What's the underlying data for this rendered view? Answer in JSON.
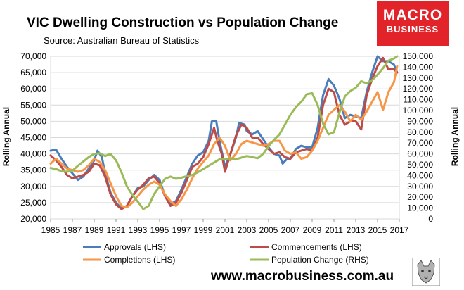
{
  "header": {
    "title": "VIC Dwelling Construction vs Population Change",
    "source": "Source: Australian Bureau of Statistics"
  },
  "brand": {
    "line1": "MACRO",
    "line2": "BUSINESS",
    "color": "#e2232a"
  },
  "footer": {
    "website": "www.macrobusiness.com.au"
  },
  "chart_data": {
    "type": "line",
    "title": "VIC Dwelling Construction vs Population Change",
    "ylabel": "Rolling Annual",
    "y2label": "Rolling Annual",
    "xlim": [
      1985,
      2017
    ],
    "ylim": [
      20000,
      70000
    ],
    "y2lim": [
      0,
      150000
    ],
    "x_ticks": [
      "1985",
      "1987",
      "1989",
      "1991",
      "1993",
      "1995",
      "1997",
      "1999",
      "2001",
      "2003",
      "2005",
      "2007",
      "2009",
      "2011",
      "2013",
      "2015",
      "2017"
    ],
    "y_ticks": [
      "70,000",
      "65,000",
      "60,000",
      "55,000",
      "50,000",
      "45,000",
      "40,000",
      "35,000",
      "30,000",
      "25,000",
      "20,000"
    ],
    "y2_ticks": [
      "150,000",
      "140,000",
      "130,000",
      "120,000",
      "110,000",
      "100,000",
      "90,000",
      "80,000",
      "70,000",
      "60,000",
      "50,000",
      "40,000",
      "30,000",
      "20,000",
      "10,000",
      "0"
    ],
    "legend": [
      "Approvals (LHS)",
      "Commencements (LHS)",
      "Completions (LHS)",
      "Population Change (RHS)"
    ],
    "series": [
      {
        "name": "Approvals (LHS)",
        "axis": "left",
        "color": "#4a7ebb",
        "points": [
          [
            1985,
            41000
          ],
          [
            1985.5,
            41300
          ],
          [
            1986,
            38500
          ],
          [
            1986.5,
            36000
          ],
          [
            1987,
            34000
          ],
          [
            1987.5,
            32000
          ],
          [
            1988,
            33000
          ],
          [
            1988.5,
            35500
          ],
          [
            1989,
            38000
          ],
          [
            1989.3,
            41000
          ],
          [
            1989.7,
            39000
          ],
          [
            1990,
            34000
          ],
          [
            1990.5,
            28000
          ],
          [
            1991,
            25000
          ],
          [
            1991.5,
            23200
          ],
          [
            1992,
            24000
          ],
          [
            1992.5,
            27000
          ],
          [
            1993,
            29500
          ],
          [
            1993.5,
            30000
          ],
          [
            1994,
            32000
          ],
          [
            1994.5,
            33500
          ],
          [
            1995,
            32000
          ],
          [
            1995.5,
            27000
          ],
          [
            1996,
            24500
          ],
          [
            1996.5,
            25500
          ],
          [
            1997,
            29000
          ],
          [
            1997.5,
            33000
          ],
          [
            1998,
            37000
          ],
          [
            1998.5,
            39500
          ],
          [
            1999,
            40500
          ],
          [
            1999.5,
            44000
          ],
          [
            1999.8,
            50000
          ],
          [
            2000.2,
            50000
          ],
          [
            2000.5,
            44000
          ],
          [
            2001,
            36000
          ],
          [
            2001.5,
            40000
          ],
          [
            2002,
            45000
          ],
          [
            2002.3,
            49500
          ],
          [
            2002.8,
            49000
          ],
          [
            2003,
            47000
          ],
          [
            2003.5,
            46000
          ],
          [
            2004,
            47000
          ],
          [
            2004.5,
            44500
          ],
          [
            2005,
            42000
          ],
          [
            2005.5,
            40000
          ],
          [
            2006,
            39500
          ],
          [
            2006.3,
            37000
          ],
          [
            2006.7,
            38500
          ],
          [
            2007,
            38500
          ],
          [
            2007.5,
            41500
          ],
          [
            2008,
            42500
          ],
          [
            2008.5,
            42000
          ],
          [
            2009,
            42000
          ],
          [
            2009.5,
            48000
          ],
          [
            2010,
            58000
          ],
          [
            2010.5,
            63000
          ],
          [
            2011,
            61000
          ],
          [
            2011.5,
            57000
          ],
          [
            2012,
            51000
          ],
          [
            2012.5,
            52000
          ],
          [
            2013,
            51500
          ],
          [
            2013.5,
            51000
          ],
          [
            2014,
            59000
          ],
          [
            2014.5,
            65000
          ],
          [
            2015,
            70000
          ],
          [
            2015.5,
            68500
          ],
          [
            2016,
            68500
          ],
          [
            2016.5,
            67500
          ],
          [
            2016.8,
            65000
          ]
        ]
      },
      {
        "name": "Commencements (LHS)",
        "axis": "left",
        "color": "#be4b48",
        "points": [
          [
            1985,
            39500
          ],
          [
            1985.5,
            38000
          ],
          [
            1986,
            36000
          ],
          [
            1986.5,
            33500
          ],
          [
            1987,
            32500
          ],
          [
            1987.5,
            33000
          ],
          [
            1988,
            33500
          ],
          [
            1988.5,
            34500
          ],
          [
            1989,
            37000
          ],
          [
            1989.5,
            36500
          ],
          [
            1990,
            33000
          ],
          [
            1990.5,
            27500
          ],
          [
            1991,
            24500
          ],
          [
            1991.5,
            23000
          ],
          [
            1992,
            24000
          ],
          [
            1992.5,
            27000
          ],
          [
            1993,
            29000
          ],
          [
            1993.5,
            30500
          ],
          [
            1994,
            32500
          ],
          [
            1994.5,
            33000
          ],
          [
            1995,
            31000
          ],
          [
            1995.5,
            27000
          ],
          [
            1996,
            24000
          ],
          [
            1996.5,
            25000
          ],
          [
            1997,
            28000
          ],
          [
            1997.5,
            32000
          ],
          [
            1998,
            36000
          ],
          [
            1998.5,
            37000
          ],
          [
            1999,
            39000
          ],
          [
            1999.5,
            43000
          ],
          [
            2000,
            48000
          ],
          [
            2000.3,
            44000
          ],
          [
            2000.7,
            40000
          ],
          [
            2001,
            34500
          ],
          [
            2001.5,
            40000
          ],
          [
            2002,
            45500
          ],
          [
            2002.5,
            49000
          ],
          [
            2003,
            48000
          ],
          [
            2003.5,
            45000
          ],
          [
            2004,
            45000
          ],
          [
            2004.5,
            43000
          ],
          [
            2005,
            41500
          ],
          [
            2005.5,
            40000
          ],
          [
            2006,
            40500
          ],
          [
            2006.5,
            39000
          ],
          [
            2007,
            38500
          ],
          [
            2007.5,
            40500
          ],
          [
            2008,
            41000
          ],
          [
            2008.5,
            41500
          ],
          [
            2009,
            41000
          ],
          [
            2009.5,
            45000
          ],
          [
            2010,
            55000
          ],
          [
            2010.5,
            60000
          ],
          [
            2011,
            59000
          ],
          [
            2011.5,
            52000
          ],
          [
            2012,
            49000
          ],
          [
            2012.5,
            50000
          ],
          [
            2013,
            50000
          ],
          [
            2013.5,
            47500
          ],
          [
            2014,
            58000
          ],
          [
            2014.5,
            63000
          ],
          [
            2015,
            67000
          ],
          [
            2015.5,
            69500
          ],
          [
            2016,
            66000
          ],
          [
            2016.5,
            66000
          ],
          [
            2016.8,
            65000
          ]
        ]
      },
      {
        "name": "Completions (LHS)",
        "axis": "left",
        "color": "#f79646",
        "points": [
          [
            1985,
            37000
          ],
          [
            1985.5,
            38500
          ],
          [
            1986,
            37000
          ],
          [
            1986.5,
            35500
          ],
          [
            1987,
            35000
          ],
          [
            1987.5,
            34500
          ],
          [
            1988,
            35000
          ],
          [
            1988.5,
            36500
          ],
          [
            1989,
            38500
          ],
          [
            1989.5,
            37500
          ],
          [
            1990,
            35000
          ],
          [
            1990.5,
            31000
          ],
          [
            1991,
            27000
          ],
          [
            1991.5,
            24000
          ],
          [
            1992,
            23500
          ],
          [
            1992.5,
            25000
          ],
          [
            1993,
            27000
          ],
          [
            1993.5,
            29000
          ],
          [
            1994,
            30500
          ],
          [
            1994.5,
            31500
          ],
          [
            1995,
            30500
          ],
          [
            1995.5,
            27500
          ],
          [
            1996,
            25500
          ],
          [
            1996.5,
            24000
          ],
          [
            1997,
            26000
          ],
          [
            1997.5,
            29000
          ],
          [
            1998,
            32500
          ],
          [
            1998.5,
            35500
          ],
          [
            1999,
            37500
          ],
          [
            1999.5,
            39500
          ],
          [
            2000,
            43000
          ],
          [
            2000.5,
            45000
          ],
          [
            2001,
            42500
          ],
          [
            2001.5,
            38000
          ],
          [
            2002,
            40000
          ],
          [
            2002.5,
            43000
          ],
          [
            2003,
            44000
          ],
          [
            2003.5,
            43500
          ],
          [
            2004,
            43000
          ],
          [
            2004.5,
            42500
          ],
          [
            2005,
            43000
          ],
          [
            2005.5,
            44000
          ],
          [
            2006,
            44000
          ],
          [
            2006.5,
            41000
          ],
          [
            2007,
            40000
          ],
          [
            2007.5,
            40500
          ],
          [
            2008,
            38500
          ],
          [
            2008.5,
            39000
          ],
          [
            2009,
            41000
          ],
          [
            2009.5,
            44000
          ],
          [
            2010,
            48000
          ],
          [
            2010.5,
            52000
          ],
          [
            2011,
            53500
          ],
          [
            2011.5,
            55000
          ],
          [
            2012,
            53000
          ],
          [
            2012.5,
            50000
          ],
          [
            2013,
            52000
          ],
          [
            2013.5,
            50500
          ],
          [
            2014,
            53000
          ],
          [
            2014.5,
            56000
          ],
          [
            2015,
            59000
          ],
          [
            2015.5,
            53500
          ],
          [
            2016,
            59000
          ],
          [
            2016.5,
            62000
          ],
          [
            2016.8,
            67000
          ]
        ]
      },
      {
        "name": "Population Change (RHS)",
        "axis": "right",
        "color": "#9bbb59",
        "points": [
          [
            1985,
            47000
          ],
          [
            1985.5,
            46000
          ],
          [
            1986,
            44000
          ],
          [
            1986.5,
            43500
          ],
          [
            1987,
            44500
          ],
          [
            1987.5,
            49000
          ],
          [
            1988,
            53000
          ],
          [
            1988.5,
            57000
          ],
          [
            1989,
            60000
          ],
          [
            1989.5,
            60500
          ],
          [
            1990,
            58000
          ],
          [
            1990.5,
            60000
          ],
          [
            1991,
            54000
          ],
          [
            1991.5,
            43000
          ],
          [
            1992,
            30000
          ],
          [
            1992.5,
            22000
          ],
          [
            1993,
            16000
          ],
          [
            1993.5,
            9000
          ],
          [
            1994,
            12000
          ],
          [
            1994.5,
            23000
          ],
          [
            1995,
            30000
          ],
          [
            1995.5,
            37000
          ],
          [
            1996,
            39000
          ],
          [
            1996.5,
            37000
          ],
          [
            1997,
            38000
          ],
          [
            1997.5,
            39500
          ],
          [
            1998,
            40500
          ],
          [
            1998.5,
            43000
          ],
          [
            1999,
            46000
          ],
          [
            1999.5,
            49000
          ],
          [
            2000,
            52000
          ],
          [
            2000.5,
            55000
          ],
          [
            2001,
            55000
          ],
          [
            2001.5,
            56000
          ],
          [
            2002,
            55000
          ],
          [
            2002.5,
            56500
          ],
          [
            2003,
            58000
          ],
          [
            2003.5,
            57000
          ],
          [
            2004,
            56000
          ],
          [
            2004.5,
            60000
          ],
          [
            2005,
            67000
          ],
          [
            2005.5,
            73000
          ],
          [
            2006,
            78000
          ],
          [
            2006.5,
            87000
          ],
          [
            2007,
            96000
          ],
          [
            2007.5,
            103000
          ],
          [
            2008,
            108000
          ],
          [
            2008.5,
            115000
          ],
          [
            2009,
            116000
          ],
          [
            2009.5,
            105000
          ],
          [
            2010,
            88000
          ],
          [
            2010.5,
            78000
          ],
          [
            2011,
            80000
          ],
          [
            2011.5,
            98000
          ],
          [
            2012,
            113000
          ],
          [
            2012.5,
            118000
          ],
          [
            2013,
            121000
          ],
          [
            2013.5,
            127000
          ],
          [
            2014,
            125000
          ],
          [
            2014.5,
            128000
          ],
          [
            2015,
            133000
          ],
          [
            2015.5,
            139000
          ],
          [
            2016,
            146000
          ],
          [
            2016.5,
            148000
          ],
          [
            2016.8,
            150000
          ]
        ]
      }
    ]
  }
}
